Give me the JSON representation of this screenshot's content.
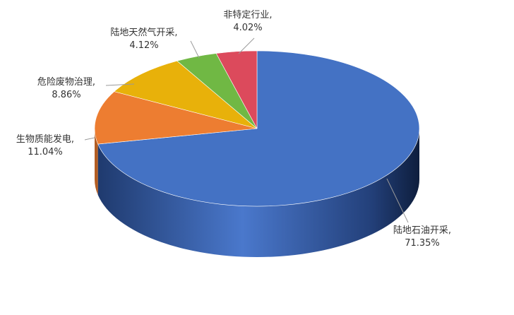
{
  "chart_data": {
    "type": "pie",
    "style": "3d",
    "title": "",
    "slices": [
      {
        "label": "陆地石油开采,",
        "value": 71.35,
        "value_text": "71.35%",
        "color": "#4472C4",
        "side_color": "#2F528F"
      },
      {
        "label": "生物质能发电,",
        "value": 11.04,
        "value_text": "11.04%",
        "color": "#ED7D31",
        "side_color": "#B35D22"
      },
      {
        "label": "危险废物治理,",
        "value": 8.86,
        "value_text": "8.86%",
        "color": "#E8B10A",
        "side_color": "#AE8507"
      },
      {
        "label": "陆地天然气开采,",
        "value": 4.12,
        "value_text": "4.12%",
        "color": "#70B844",
        "side_color": "#528A31"
      },
      {
        "label": "非特定行业,",
        "value": 4.02,
        "value_text": "4.02%",
        "color": "#DC4A5C",
        "side_color": "#A33443"
      }
    ]
  }
}
